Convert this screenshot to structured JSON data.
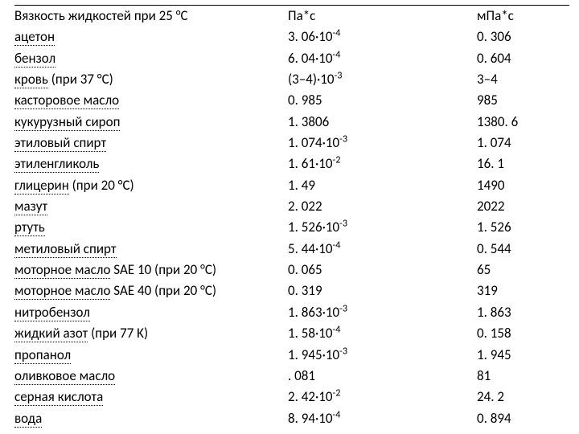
{
  "table": {
    "background_color": "#ffffff",
    "text_color": "#000000",
    "font_size_pt": 13,
    "row_line_height": 1.55,
    "underline_style": "dotted",
    "top_border_color": "#000000",
    "header": {
      "col1": "Вязкость жидкостей при 25 °C",
      "col2": "Па*с",
      "col3": "мПа*с"
    },
    "rows": [
      {
        "name": "ацетон",
        "suffix": "",
        "val_base": "3. 06·10",
        "val_exp": "-4",
        "mpas": "0. 306"
      },
      {
        "name": "бензол",
        "suffix": "",
        "val_base": "6. 04·10",
        "val_exp": "-4",
        "mpas": "0. 604"
      },
      {
        "name": "кровь",
        "suffix": " (при 37 °C)",
        "val_base": "(3–4)·10",
        "val_exp": "-3",
        "mpas": "3–4"
      },
      {
        "name": "касторовое масло",
        "suffix": "",
        "val_base": "0. 985",
        "val_exp": "",
        "mpas": "985"
      },
      {
        "name": "кукурузный сироп",
        "suffix": "",
        "val_base": "1. 3806",
        "val_exp": "",
        "mpas": "1380. 6"
      },
      {
        "name": "этиловый спирт",
        "suffix": "",
        "val_base": "1. 074·10",
        "val_exp": "-3",
        "mpas": "1. 074"
      },
      {
        "name": "этиленгликоль",
        "suffix": "",
        "val_base": "1. 61·10",
        "val_exp": "-2",
        "mpas": "16. 1"
      },
      {
        "name": "глицерин",
        "suffix": " (при 20 °C)",
        "val_base": "1. 49",
        "val_exp": "",
        "mpas": "1490"
      },
      {
        "name": "мазут",
        "suffix": "",
        "val_base": "2. 022",
        "val_exp": "",
        "mpas": "2022"
      },
      {
        "name": "ртуть",
        "suffix": "",
        "val_base": "1. 526·10",
        "val_exp": "-3",
        "mpas": "1. 526"
      },
      {
        "name": "метиловый спирт",
        "suffix": "",
        "val_base": "5. 44·10",
        "val_exp": "-4",
        "mpas": "0. 544"
      },
      {
        "name": "моторное масло",
        "suffix": " SAE 10 (при 20 °C)",
        "val_base": "0. 065",
        "val_exp": "",
        "mpas": "65"
      },
      {
        "name": "моторное масло",
        "suffix": " SAE 40 (при 20 °C)",
        "val_base": "0. 319",
        "val_exp": "",
        "mpas": "319"
      },
      {
        "name": "нитробензол",
        "suffix": "",
        "val_base": "1. 863·10",
        "val_exp": "-3",
        "mpas": "1. 863"
      },
      {
        "name": "жидкий азот",
        "suffix": " (при 77 K)",
        "val_base": "1. 58·10",
        "val_exp": "-4",
        "mpas": "0. 158"
      },
      {
        "name": "пропанол",
        "suffix": "",
        "val_base": "1. 945·10",
        "val_exp": "-3",
        "mpas": "1. 945"
      },
      {
        "name": "оливковое масло",
        "suffix": "",
        "val_base": ". 081",
        "val_exp": "",
        "mpas": "81"
      },
      {
        "name": "серная кислота",
        "suffix": "",
        "val_base": "2. 42·10",
        "val_exp": "-2",
        "mpas": "24. 2"
      },
      {
        "name": "вода",
        "suffix": "",
        "val_base": "8. 94·10",
        "val_exp": "-4",
        "mpas": "0. 894"
      }
    ]
  }
}
